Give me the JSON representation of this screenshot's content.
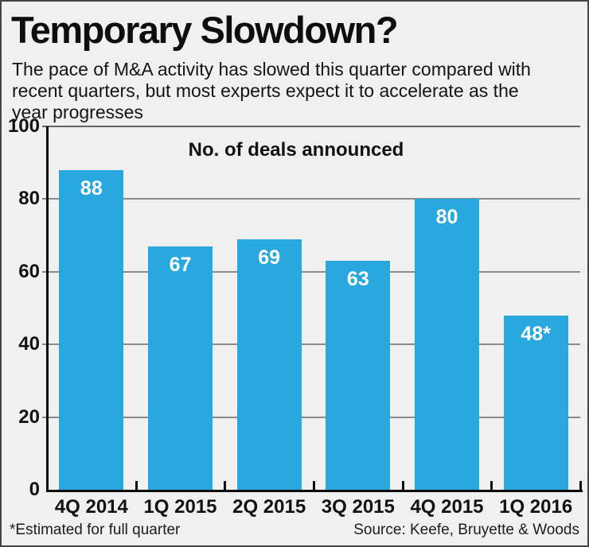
{
  "header": {
    "title": "Temporary Slowdown?",
    "subtitle_lines": [
      "The pace of M&A activity has slowed this quarter compared with",
      "recent quarters, but most experts expect it to accelerate as the",
      "year progresses"
    ]
  },
  "chart_data": {
    "type": "bar",
    "title": "No. of deals announced",
    "categories": [
      "4Q 2014",
      "1Q 2015",
      "2Q 2015",
      "3Q 2015",
      "4Q 2015",
      "1Q 2016"
    ],
    "values": [
      88,
      67,
      69,
      63,
      80,
      48
    ],
    "value_labels": [
      "88",
      "67",
      "69",
      "63",
      "80",
      "48*"
    ],
    "ylim": [
      0,
      100
    ],
    "yticks": [
      0,
      20,
      40,
      60,
      80,
      100
    ],
    "grid": true,
    "legend": "none",
    "bar_color": "#29a8df",
    "value_label_color": "#ffffff",
    "background_color": "#f0f0f1"
  },
  "footer": {
    "note": "*Estimated for full quarter",
    "source": "Source: Keefe, Bruyette & Woods"
  }
}
